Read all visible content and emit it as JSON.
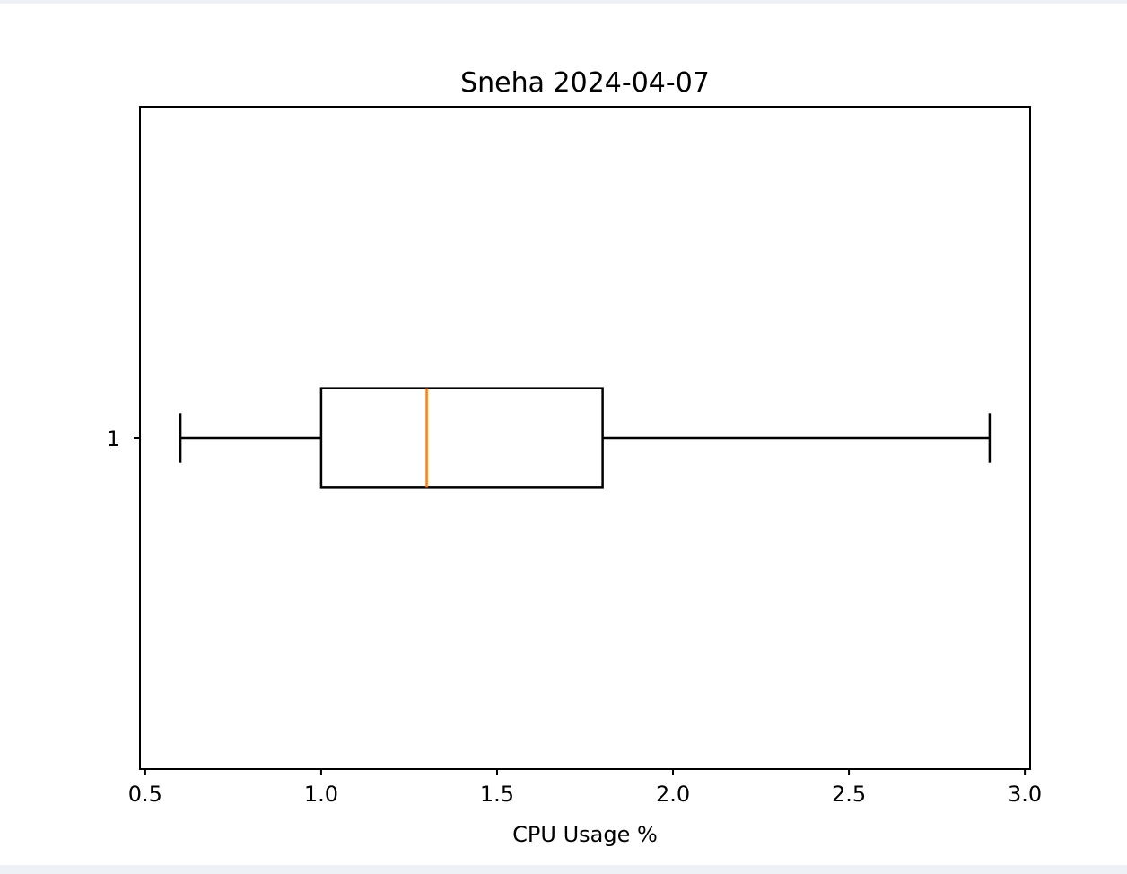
{
  "chart_data": {
    "type": "boxplot",
    "title": "Sneha 2024-04-07",
    "xlabel": "CPU Usage %",
    "ylabel": "",
    "orientation": "horizontal",
    "xlim": [
      0.485,
      3.015
    ],
    "x_ticks": [
      0.5,
      1.0,
      1.5,
      2.0,
      2.5,
      3.0
    ],
    "x_tick_labels": [
      "0.5",
      "1.0",
      "1.5",
      "2.0",
      "2.5",
      "3.0"
    ],
    "y_ticks": [
      1
    ],
    "y_tick_labels": [
      "1"
    ],
    "grid": false,
    "boxes": [
      {
        "position": 1,
        "whisker_low": 0.6,
        "q1": 1.0,
        "median": 1.3,
        "q3": 1.8,
        "whisker_high": 2.9
      }
    ],
    "colors": {
      "box": "#000000",
      "median": "#ff7f0e",
      "background": "#ffffff"
    }
  }
}
